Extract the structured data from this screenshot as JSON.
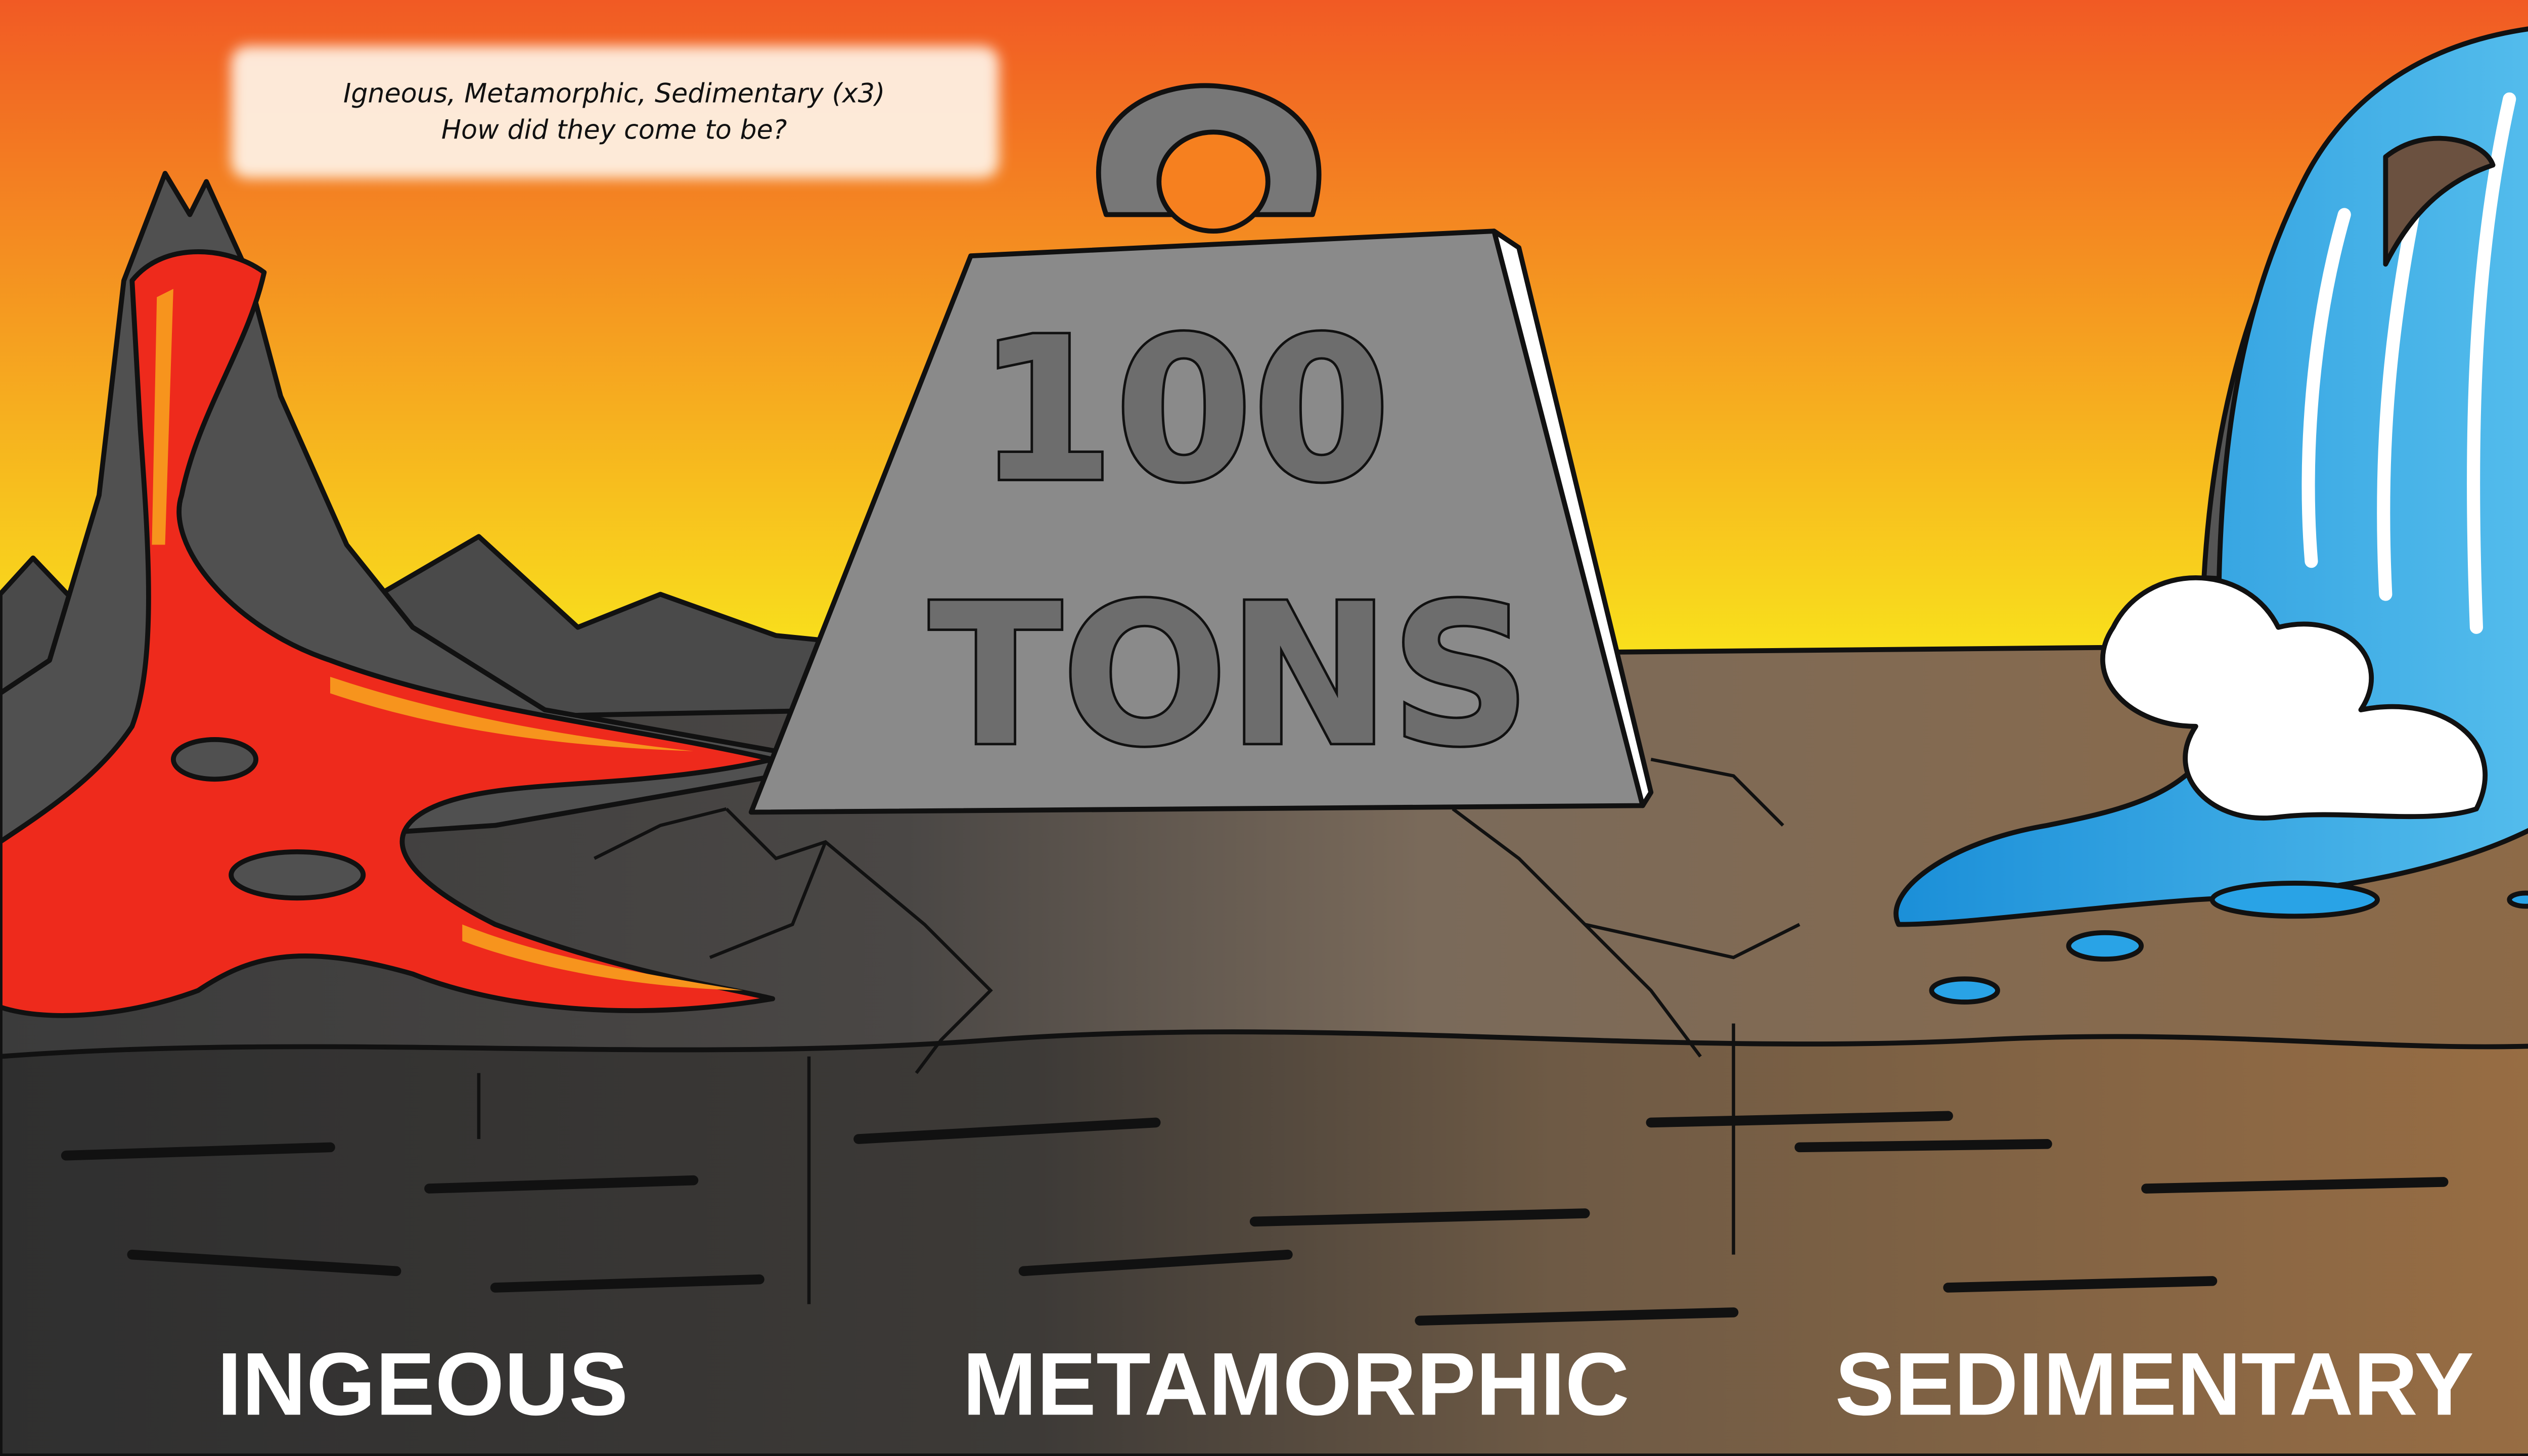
{
  "caption": {
    "lines": [
      "Igneous, Metamorphic, Sedimentary (x3)",
      "How did they come to be?"
    ]
  },
  "weight": {
    "number": "100",
    "unit": "TONS"
  },
  "labels": [
    "INGEOUS",
    "METAMORPHIC",
    "SEDIMENTARY"
  ]
}
